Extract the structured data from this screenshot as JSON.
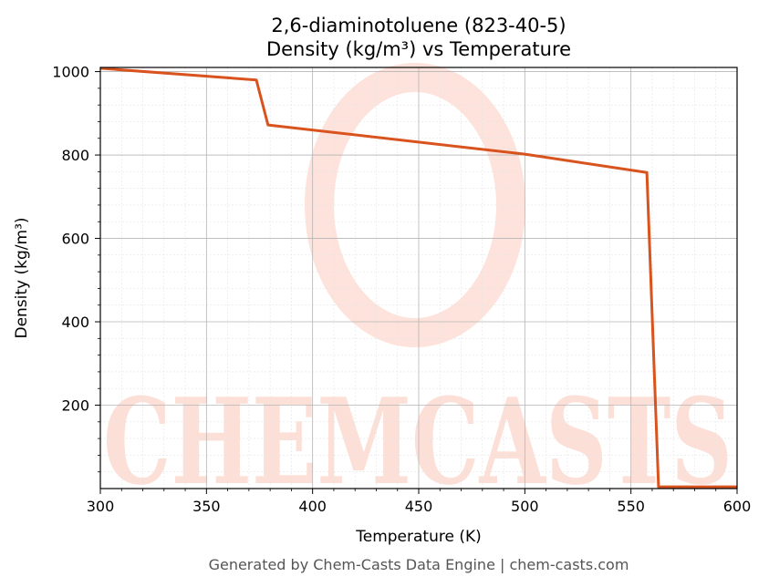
{
  "chart_data": {
    "type": "line",
    "title": "2,6-diaminotoluene (823-40-5)",
    "subtitle": "Density (kg/m³) vs Temperature",
    "xlabel": "Temperature (K)",
    "ylabel": "Density (kg/m³)",
    "xlim": [
      300,
      600
    ],
    "ylim": [
      0,
      1010
    ],
    "x_ticks": [
      300,
      350,
      400,
      450,
      500,
      550,
      600
    ],
    "y_ticks": [
      200,
      400,
      600,
      800,
      1000
    ],
    "grid": true,
    "legend": "none",
    "series": [
      {
        "color": "#d9531e",
        "x": [
          300,
          373.5,
          379,
          500,
          557.5,
          563,
          600
        ],
        "y": [
          1008,
          980,
          872,
          802,
          758,
          4,
          4
        ]
      }
    ]
  },
  "watermark": "CHEMCASTS",
  "footer": "Generated by Chem-Casts Data Engine | chem-casts.com"
}
